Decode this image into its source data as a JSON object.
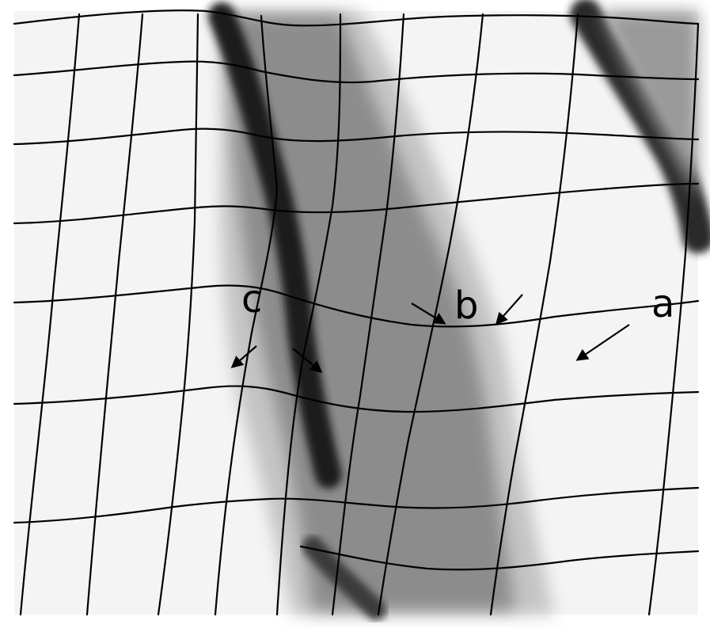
{
  "labels": {
    "a": "a",
    "b": "b",
    "c": "c"
  },
  "colors": {
    "background": "#ffffff",
    "grid_line": "#000000",
    "shading_dark": "#1a1a1a",
    "shading_mid": "#8a8a8a",
    "shading_light": "#c8c8c8"
  }
}
